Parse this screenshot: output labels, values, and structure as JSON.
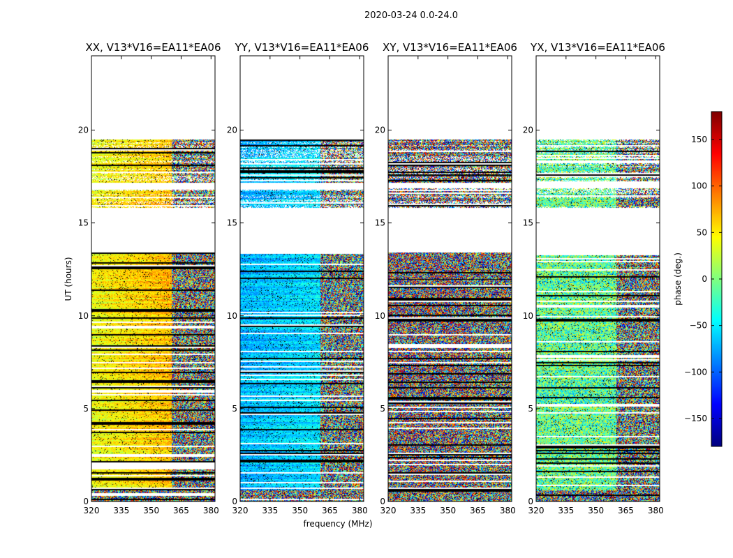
{
  "chart_data": {
    "type": "heatmap",
    "suptitle": "2020-03-24 0.0-24.0",
    "panels": [
      {
        "name": "XX",
        "title": "XX, V13*V16=EA11*EA06",
        "base_phase": 40,
        "slope": 45,
        "noise": 25
      },
      {
        "name": "YY",
        "title": "YY, V13*V16=EA11*EA06",
        "base_phase": -70,
        "slope": 25,
        "noise": 25
      },
      {
        "name": "XY",
        "title": "XY, V13*V16=EA11*EA06",
        "base_phase": 180,
        "slope": 0,
        "noise": 160
      },
      {
        "name": "YX",
        "title": "YX, V13*V16=EA11*EA06",
        "base_phase": -10,
        "slope": 0,
        "noise": 70
      }
    ],
    "xlabel": "frequency (MHz)",
    "ylabel": "UT (hours)",
    "xlim": [
      320,
      382
    ],
    "ylim": [
      0,
      24
    ],
    "xticks": [
      "320",
      "335",
      "350",
      "365",
      "380"
    ],
    "xtick_values": [
      320,
      335,
      350,
      365,
      380
    ],
    "yticks": [
      "0",
      "5",
      "10",
      "15",
      "20"
    ],
    "ytick_values": [
      0,
      5,
      10,
      15,
      20
    ],
    "fringe_start_mhz": 360,
    "data_ranges_hours": [
      [
        0,
        7.6
      ],
      [
        7.6,
        13.4
      ],
      [
        15.8,
        16.9
      ],
      [
        17.2,
        19.5
      ]
    ],
    "high_noise_range_hours": [
      0,
      0.6
    ],
    "colorbar": {
      "label": "phase (deg.)",
      "range": [
        -180,
        180
      ],
      "ticks": [
        "150",
        "100",
        "50",
        "0",
        "−50",
        "−100",
        "−150"
      ],
      "tick_values": [
        150,
        100,
        50,
        0,
        -50,
        -100,
        -150
      ]
    }
  }
}
